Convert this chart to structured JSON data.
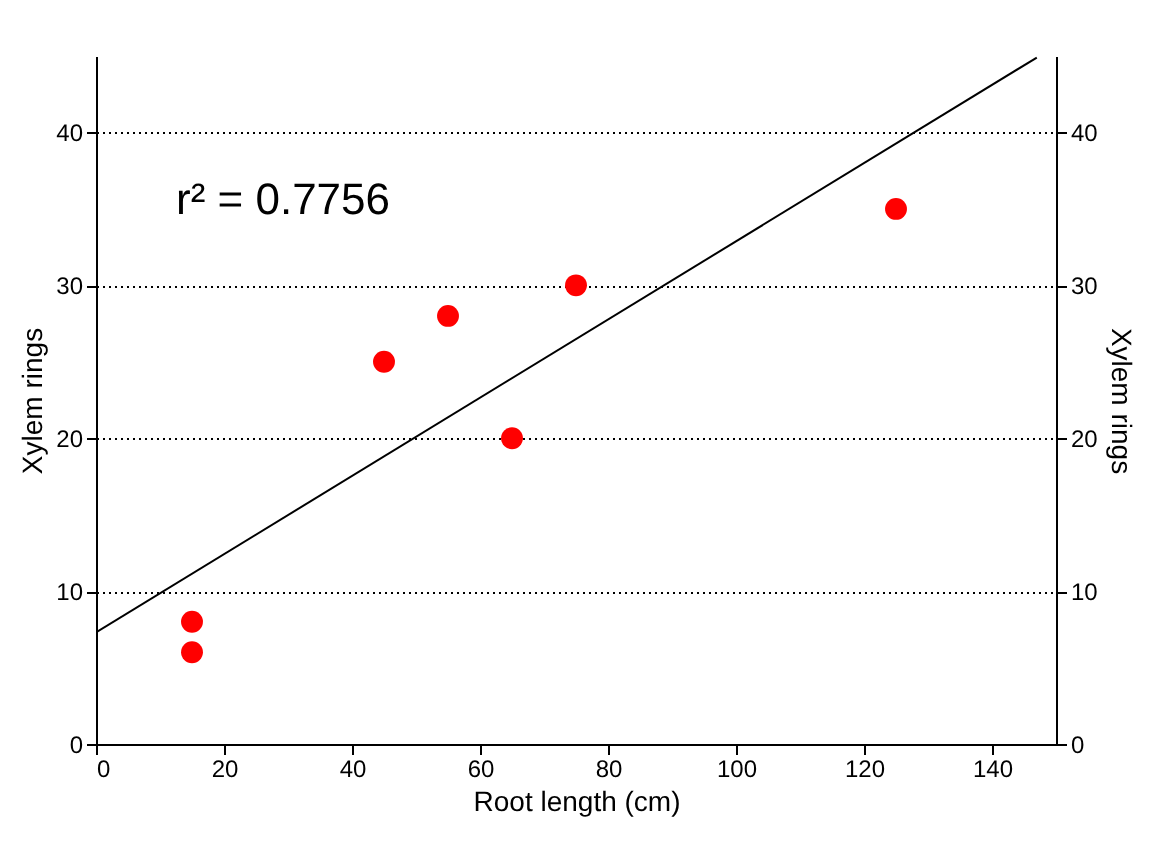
{
  "chart_data": {
    "type": "scatter",
    "xlabel": "Root length (cm)",
    "ylabel": "Xylem rings",
    "y2label": "Xylem rings",
    "xlim": [
      0,
      150
    ],
    "xticks": [
      0,
      20,
      40,
      60,
      80,
      100,
      120,
      140
    ],
    "ylim": [
      0,
      45
    ],
    "yticks": [
      0,
      10,
      20,
      30,
      40
    ],
    "y2lim": [
      0,
      45
    ],
    "y2ticks": [
      0,
      10,
      20,
      30,
      40
    ],
    "grid": "y",
    "annotations": [
      "r² = 0.7756"
    ],
    "series": [
      {
        "marker": "circle",
        "color": "#ff0000",
        "x": [
          15,
          15,
          45,
          55,
          65,
          75,
          125
        ],
        "values": [
          8,
          6,
          25,
          28,
          20,
          30,
          35
        ]
      },
      {
        "type": "line",
        "axis": "y2",
        "color": "#000000",
        "x": [
          0,
          147
        ],
        "values": [
          7.3,
          44.9
        ]
      }
    ]
  }
}
